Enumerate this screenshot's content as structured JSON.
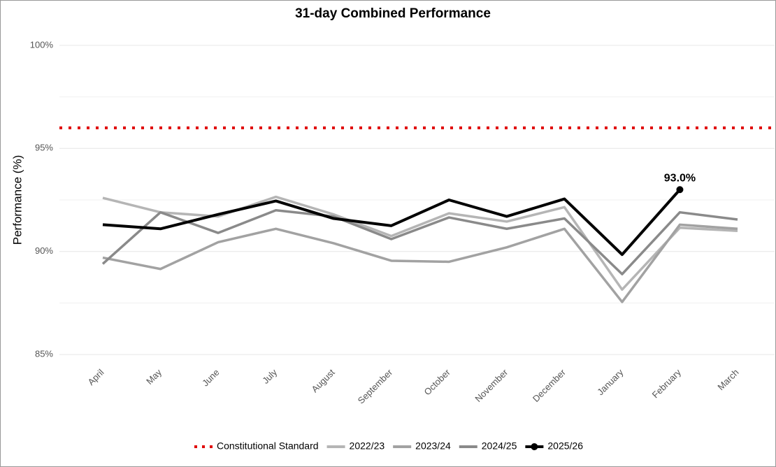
{
  "chart_data": {
    "type": "line",
    "title": "31-day Combined Performance",
    "y_label": "Performance (%)",
    "categories": [
      "April",
      "May",
      "June",
      "July",
      "August",
      "September",
      "October",
      "November",
      "December",
      "January",
      "February",
      "March"
    ],
    "ylim": [
      84.8,
      100.2
    ],
    "yticks": [
      {
        "value": 85,
        "label": "85%"
      },
      {
        "value": 90,
        "label": "90%"
      },
      {
        "value": 95,
        "label": "95%"
      },
      {
        "value": 100,
        "label": "100%"
      }
    ],
    "minor_yticks": [
      87.5,
      92.5,
      97.5
    ],
    "grid": true,
    "legend": "bottom",
    "reference_line": {
      "name": "Constitutional Standard",
      "value": 96,
      "color": "#e00000"
    },
    "series": [
      {
        "name": "2022/23",
        "color": "#b5b5b5",
        "values": [
          92.6,
          91.9,
          91.7,
          92.65,
          91.8,
          90.75,
          91.85,
          91.45,
          92.15,
          88.15,
          91.15,
          91.0
        ]
      },
      {
        "name": "2023/24",
        "color": "#a2a2a2",
        "values": [
          89.7,
          89.15,
          90.45,
          91.1,
          90.4,
          89.55,
          89.5,
          90.2,
          91.1,
          87.55,
          91.3,
          91.1
        ]
      },
      {
        "name": "2024/25",
        "color": "#8a8a8a",
        "values": [
          89.4,
          91.9,
          90.9,
          92.0,
          91.7,
          90.6,
          91.65,
          91.1,
          91.6,
          88.9,
          91.9,
          91.55
        ]
      },
      {
        "name": "2025/26",
        "color": "#000000",
        "values": [
          91.3,
          91.1,
          91.8,
          92.45,
          91.6,
          91.25,
          92.5,
          91.7,
          92.55,
          89.85,
          93.0,
          null
        ],
        "value_labels": [
          null,
          null,
          null,
          null,
          null,
          null,
          null,
          null,
          null,
          null,
          "93.0%",
          null
        ]
      }
    ]
  }
}
